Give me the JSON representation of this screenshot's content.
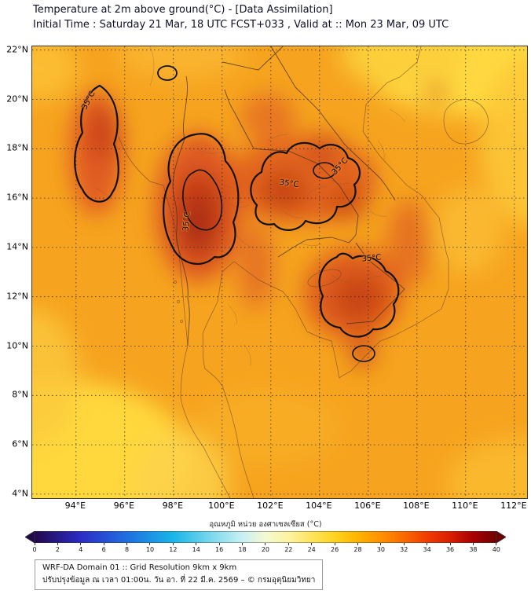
{
  "header": {
    "title": "Temperature at 2m above ground(°C) - [Data Assimilation]",
    "subtitle": "Initial Time : Saturday 21 Mar, 18 UTC FCST+033 , Valid at :: Mon 23 Mar, 09 UTC"
  },
  "axes": {
    "lat_ticks": [
      "22°N",
      "20°N",
      "18°N",
      "16°N",
      "14°N",
      "12°N",
      "10°N",
      "8°N",
      "6°N",
      "4°N"
    ],
    "lon_ticks": [
      "94°E",
      "96°E",
      "98°E",
      "100°E",
      "102°E",
      "104°E",
      "106°E",
      "108°E",
      "110°E",
      "112°E"
    ]
  },
  "map": {
    "contour_labels": [
      {
        "text": "35°C"
      },
      {
        "text": "35°C"
      },
      {
        "text": "35°C"
      },
      {
        "text": "35°C"
      },
      {
        "text": "35°C"
      }
    ]
  },
  "colorbar": {
    "title": "อุณหภูมิ หน่วย องศาเซลเซียส (°C)",
    "min": 0,
    "max": 40,
    "ticks": [
      "0",
      "2",
      "4",
      "6",
      "8",
      "10",
      "12",
      "14",
      "16",
      "18",
      "20",
      "22",
      "24",
      "26",
      "28",
      "30",
      "32",
      "34",
      "36",
      "38",
      "40"
    ],
    "stops": [
      {
        "value": 0,
        "color": "#23074d"
      },
      {
        "value": 4,
        "color": "#2c2cc4"
      },
      {
        "value": 8,
        "color": "#1f6fe0"
      },
      {
        "value": 12,
        "color": "#18b5e8"
      },
      {
        "value": 16,
        "color": "#8fe0f0"
      },
      {
        "value": 18,
        "color": "#c8f0f4"
      },
      {
        "value": 20,
        "color": "#f4f9d0"
      },
      {
        "value": 22,
        "color": "#fdf3a0"
      },
      {
        "value": 24,
        "color": "#ffe45c"
      },
      {
        "value": 26,
        "color": "#ffd31f"
      },
      {
        "value": 28,
        "color": "#ffb300"
      },
      {
        "value": 30,
        "color": "#ff9100"
      },
      {
        "value": 32,
        "color": "#f96a00"
      },
      {
        "value": 34,
        "color": "#f03c00"
      },
      {
        "value": 36,
        "color": "#d81e00"
      },
      {
        "value": 38,
        "color": "#a80000"
      },
      {
        "value": 40,
        "color": "#700000"
      }
    ]
  },
  "footer": {
    "line1": "WRF-DA Domain 01 :: Grid Resolution 9km x 9km",
    "line2": "ปรับปรุงข้อมูล ณ เวลา 01:00น. วัน อา. ที่ 22 มี.ค. 2569 – © กรมอุตุนิยมวิทยา"
  },
  "chart_data": {
    "type": "heatmap",
    "title": "Temperature at 2m above ground(°C) - [Data Assimilation]",
    "subtitle": "Initial Time : Saturday 21 Mar, 18 UTC FCST+033 , Valid at :: Mon 23 Mar, 09 UTC",
    "x_ticks": [
      "94°E",
      "96°E",
      "98°E",
      "100°E",
      "102°E",
      "104°E",
      "106°E",
      "108°E",
      "110°E",
      "112°E"
    ],
    "y_ticks": [
      "22°N",
      "20°N",
      "18°N",
      "16°N",
      "14°N",
      "12°N",
      "10°N",
      "8°N",
      "6°N",
      "4°N"
    ],
    "x_range_deg_east": [
      92.2,
      112.5
    ],
    "y_range_deg_north": [
      3.8,
      22.2
    ],
    "grid": "dotted, every 2 degrees",
    "legend_position": "bottom colorbar with under/over arrows",
    "colorbar": {
      "label": "อุณหภูมิ หน่วย องศาเซลเซียส (°C)",
      "min": 0,
      "max": 40,
      "tick_interval": 2
    },
    "contour_lines": {
      "value_c": 35,
      "labels": [
        {
          "text": "35°C",
          "lon_e": 95.0,
          "lat_n": 19.9
        },
        {
          "text": "35°C",
          "lon_e": 98.6,
          "lat_n": 15.0
        },
        {
          "text": "35°C",
          "lon_e": 102.8,
          "lat_n": 16.5
        },
        {
          "text": "35°C",
          "lon_e": 104.9,
          "lat_n": 17.2
        },
        {
          "text": "35°C",
          "lon_e": 106.2,
          "lat_n": 13.5
        }
      ]
    },
    "field_summary": [
      {
        "region": "central and northern Thailand hot core",
        "approx_temp_c": "35-37"
      },
      {
        "region": "western Myanmar band (~95E, 17-21N)",
        "approx_temp_c": "35-36"
      },
      {
        "region": "northeast Thailand / southern Laos",
        "approx_temp_c": "35-36"
      },
      {
        "region": "northern Cambodia / southern Vietnam inland",
        "approx_temp_c": "35-36"
      },
      {
        "region": "most other land areas",
        "approx_temp_c": "32-34"
      },
      {
        "region": "Gulf of Tonkin / northeast corner of domain",
        "approx_temp_c": "26-29"
      },
      {
        "region": "Andaman Sea (southwest of domain)",
        "approx_temp_c": "27-29"
      },
      {
        "region": "Gulf of Thailand and South China Sea",
        "approx_temp_c": "29-31"
      }
    ]
  }
}
